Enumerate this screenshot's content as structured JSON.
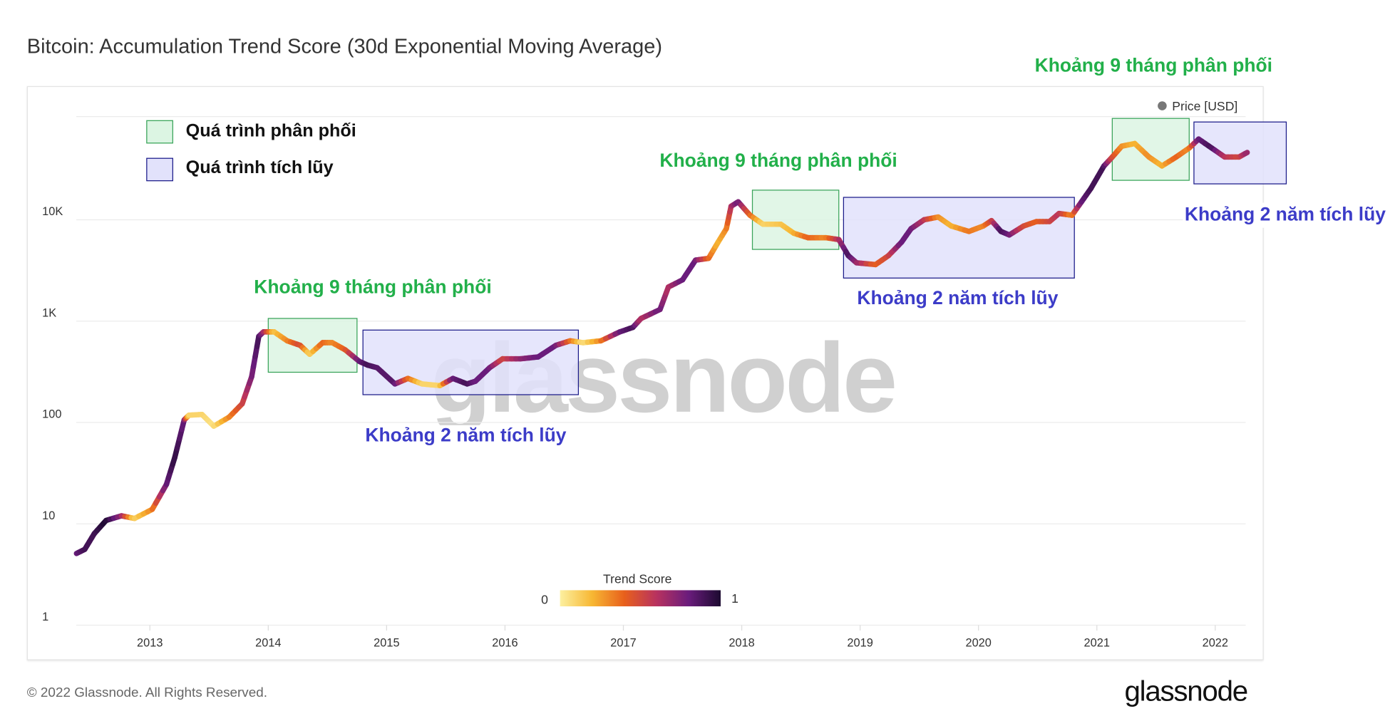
{
  "chart_data": {
    "type": "line",
    "title": "Bitcoin: Accumulation Trend Score (30d Exponential Moving Average)",
    "series_name": "Price [USD]",
    "y_scale": "log",
    "ylim": [
      1,
      100000
    ],
    "y_ticks": [
      {
        "value": 1,
        "label": "1"
      },
      {
        "value": 10,
        "label": "10"
      },
      {
        "value": 100,
        "label": "100"
      },
      {
        "value": 1000,
        "label": "1K"
      },
      {
        "value": 10000,
        "label": "10K"
      }
    ],
    "x_ticks": [
      "2013",
      "2014",
      "2015",
      "2016",
      "2017",
      "2018",
      "2019",
      "2020",
      "2021",
      "2022"
    ],
    "colorbar": {
      "title": "Trend Score",
      "min_label": "0",
      "max_label": "1",
      "colors": [
        "#fcf0a0",
        "#f7b733",
        "#e8601c",
        "#b8325f",
        "#6a1c7c",
        "#1c0a30"
      ]
    },
    "points": [
      [
        2012.38,
        5.1,
        0.8
      ],
      [
        2012.45,
        5.6,
        0.9
      ],
      [
        2012.53,
        8.0,
        0.9
      ],
      [
        2012.63,
        10.8,
        1.0
      ],
      [
        2012.76,
        12.0,
        0.7
      ],
      [
        2012.87,
        11.3,
        0.1
      ],
      [
        2013.02,
        13.9,
        0.3
      ],
      [
        2013.14,
        24.5,
        0.8
      ],
      [
        2013.21,
        45,
        0.95
      ],
      [
        2013.29,
        106,
        0.8
      ],
      [
        2013.33,
        118,
        0.1
      ],
      [
        2013.44,
        120,
        0.1
      ],
      [
        2013.54,
        92,
        0.05
      ],
      [
        2013.67,
        113,
        0.3
      ],
      [
        2013.78,
        153,
        0.5
      ],
      [
        2013.86,
        283,
        0.75
      ],
      [
        2013.92,
        707,
        0.9
      ],
      [
        2013.96,
        783,
        0.7
      ],
      [
        2014.05,
        783,
        0.15
      ],
      [
        2014.16,
        639,
        0.3
      ],
      [
        2014.27,
        577,
        0.5
      ],
      [
        2014.35,
        471,
        0.1
      ],
      [
        2014.46,
        613,
        0.4
      ],
      [
        2014.54,
        613,
        0.3
      ],
      [
        2014.65,
        521,
        0.4
      ],
      [
        2014.77,
        400,
        0.8
      ],
      [
        2014.84,
        368,
        0.9
      ],
      [
        2014.92,
        347,
        0.85
      ],
      [
        2015.07,
        240,
        0.85
      ],
      [
        2015.18,
        272,
        0.4
      ],
      [
        2015.3,
        240,
        0.1
      ],
      [
        2015.45,
        231,
        0.1
      ],
      [
        2015.56,
        272,
        0.8
      ],
      [
        2015.68,
        240,
        0.9
      ],
      [
        2015.75,
        255,
        0.8
      ],
      [
        2015.87,
        347,
        0.8
      ],
      [
        2015.98,
        425,
        0.5
      ],
      [
        2016.13,
        425,
        0.7
      ],
      [
        2016.28,
        443,
        0.8
      ],
      [
        2016.43,
        577,
        0.8
      ],
      [
        2016.55,
        639,
        0.4
      ],
      [
        2016.66,
        613,
        0.05
      ],
      [
        2016.81,
        639,
        0.3
      ],
      [
        2016.97,
        783,
        0.8
      ],
      [
        2017.08,
        867,
        0.9
      ],
      [
        2017.15,
        1063,
        0.6
      ],
      [
        2017.31,
        1303,
        0.8
      ],
      [
        2017.38,
        2168,
        0.6
      ],
      [
        2017.5,
        2554,
        0.8
      ],
      [
        2017.61,
        4000,
        0.8
      ],
      [
        2017.72,
        4162,
        0.4
      ],
      [
        2017.8,
        6010,
        0.2
      ],
      [
        2017.87,
        8160,
        0.3
      ],
      [
        2017.91,
        13580,
        0.6
      ],
      [
        2017.97,
        15030,
        0.8
      ],
      [
        2018.07,
        11070,
        0.4
      ],
      [
        2018.18,
        9030,
        0.1
      ],
      [
        2018.33,
        9030,
        0.15
      ],
      [
        2018.44,
        7360,
        0.2
      ],
      [
        2018.56,
        6650,
        0.4
      ],
      [
        2018.71,
        6650,
        0.3
      ],
      [
        2018.82,
        6380,
        0.6
      ],
      [
        2018.9,
        4430,
        0.9
      ],
      [
        2018.97,
        3760,
        0.7
      ],
      [
        2019.13,
        3610,
        0.4
      ],
      [
        2019.24,
        4430,
        0.5
      ],
      [
        2019.35,
        6010,
        0.8
      ],
      [
        2019.43,
        8160,
        0.8
      ],
      [
        2019.54,
        10000,
        0.6
      ],
      [
        2019.66,
        10640,
        0.3
      ],
      [
        2019.77,
        8670,
        0.2
      ],
      [
        2019.92,
        7670,
        0.35
      ],
      [
        2020.04,
        8670,
        0.3
      ],
      [
        2020.11,
        9800,
        0.5
      ],
      [
        2020.19,
        7670,
        0.9
      ],
      [
        2020.26,
        7080,
        0.8
      ],
      [
        2020.38,
        8670,
        0.5
      ],
      [
        2020.49,
        9600,
        0.4
      ],
      [
        2020.6,
        9600,
        0.5
      ],
      [
        2020.68,
        11530,
        0.6
      ],
      [
        2020.79,
        11070,
        0.3
      ],
      [
        2020.87,
        15030,
        0.8
      ],
      [
        2020.95,
        20400,
        0.9
      ],
      [
        2021.06,
        33960,
        0.9
      ],
      [
        2021.13,
        41600,
        0.5
      ],
      [
        2021.21,
        53200,
        0.3
      ],
      [
        2021.32,
        56500,
        0.2
      ],
      [
        2021.44,
        41600,
        0.3
      ],
      [
        2021.55,
        33960,
        0.2
      ],
      [
        2021.67,
        41600,
        0.4
      ],
      [
        2021.78,
        51050,
        0.3
      ],
      [
        2021.86,
        62550,
        0.8
      ],
      [
        2021.97,
        51050,
        0.9
      ],
      [
        2022.08,
        41600,
        0.6
      ],
      [
        2022.2,
        41600,
        0.5
      ],
      [
        2022.27,
        46100,
        0.7
      ]
    ],
    "boxes": [
      {
        "kind": "distribution",
        "x": [
          2014.0,
          2014.75
        ],
        "y": [
          313,
          1063
        ]
      },
      {
        "kind": "accumulation",
        "x": [
          2014.8,
          2016.62
        ],
        "y": [
          188,
          816
        ]
      },
      {
        "kind": "distribution",
        "x": [
          2018.09,
          2018.82
        ],
        "y": [
          5100,
          19600
        ]
      },
      {
        "kind": "accumulation",
        "x": [
          2018.86,
          2020.81
        ],
        "y": [
          2660,
          16640
        ]
      },
      {
        "kind": "distribution",
        "x": [
          2021.13,
          2021.78
        ],
        "y": [
          24500,
          100000
        ]
      },
      {
        "kind": "accumulation",
        "x": [
          2021.82,
          2022.6
        ],
        "y": [
          22600,
          92200
        ]
      }
    ]
  },
  "legend": {
    "distribution": "Quá trình phân phối",
    "accumulation": "Quá trình tích lũy",
    "price": "Price [USD]"
  },
  "annotations": {
    "distribution": "Khoảng 9 tháng phân phối",
    "accumulation": "Khoảng 2 năm tích lũy"
  },
  "colors": {
    "green_fill": "#dcf5e3",
    "green_stroke": "#3aa45a",
    "blue_fill": "#e2e2fb",
    "blue_stroke": "#1c1c8a"
  },
  "footer": {
    "copyright": "© 2022 Glassnode. All Rights Reserved.",
    "brand": "glassnode",
    "watermark": "glassnode"
  }
}
